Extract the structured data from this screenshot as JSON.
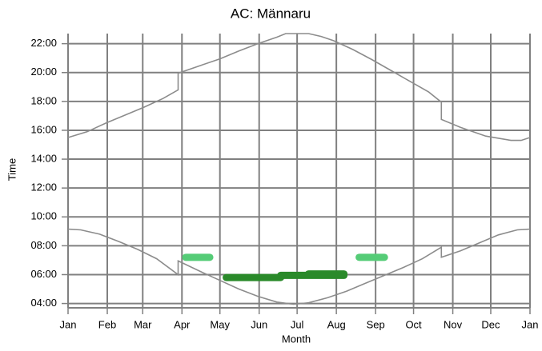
{
  "chart_data": {
    "type": "line",
    "title": "AC: Männaru",
    "xlabel": "Month",
    "ylabel": "Time",
    "xlim": [
      0,
      365
    ],
    "ylim": [
      3.7,
      22.7
    ],
    "xticks": [
      {
        "value": 0,
        "label": "Jan"
      },
      {
        "value": 31,
        "label": "Feb"
      },
      {
        "value": 59,
        "label": "Mar"
      },
      {
        "value": 90,
        "label": "Apr"
      },
      {
        "value": 120,
        "label": "May"
      },
      {
        "value": 151,
        "label": "Jun"
      },
      {
        "value": 181,
        "label": "Jul"
      },
      {
        "value": 212,
        "label": "Aug"
      },
      {
        "value": 243,
        "label": "Sep"
      },
      {
        "value": 273,
        "label": "Oct"
      },
      {
        "value": 304,
        "label": "Nov"
      },
      {
        "value": 334,
        "label": "Dec"
      },
      {
        "value": 365,
        "label": "Jan"
      }
    ],
    "yticks": [
      {
        "value": 4,
        "label": "04:00"
      },
      {
        "value": 6,
        "label": "06:00"
      },
      {
        "value": 8,
        "label": "08:00"
      },
      {
        "value": 10,
        "label": "10:00"
      },
      {
        "value": 12,
        "label": "12:00"
      },
      {
        "value": 14,
        "label": "14:00"
      },
      {
        "value": 16,
        "label": "16:00"
      },
      {
        "value": 18,
        "label": "18:00"
      },
      {
        "value": 20,
        "label": "20:00"
      },
      {
        "value": 22,
        "label": "22:00"
      }
    ],
    "grid": true,
    "series": [
      {
        "color": "#8c8c8c",
        "x": [
          0,
          15,
          30,
          45,
          60,
          75,
          87,
          87,
          105,
          120,
          135,
          150,
          165,
          172,
          190,
          200,
          210,
          225,
          240,
          255,
          270,
          285,
          295,
          295,
          310,
          330,
          350,
          358,
          365
        ],
        "values": [
          15.5,
          15.9,
          16.5,
          17.05,
          17.6,
          18.2,
          18.8,
          19.95,
          20.5,
          20.95,
          21.5,
          22.0,
          22.45,
          22.7,
          22.7,
          22.5,
          22.2,
          21.6,
          20.9,
          20.15,
          19.4,
          18.65,
          17.95,
          16.75,
          16.2,
          15.6,
          15.3,
          15.3,
          15.5
        ]
      },
      {
        "color": "#8c8c8c",
        "x": [
          0,
          10,
          25,
          40,
          55,
          70,
          87,
          87,
          105,
          120,
          135,
          150,
          165,
          178,
          190,
          205,
          220,
          235,
          250,
          265,
          280,
          295,
          295,
          310,
          325,
          340,
          355,
          365
        ],
        "values": [
          9.15,
          9.1,
          8.8,
          8.3,
          7.75,
          7.1,
          6.0,
          6.95,
          6.2,
          5.6,
          5.0,
          4.5,
          4.1,
          3.95,
          4.05,
          4.4,
          4.85,
          5.4,
          5.95,
          6.5,
          7.1,
          7.9,
          7.2,
          7.65,
          8.2,
          8.75,
          9.1,
          9.15
        ]
      }
    ],
    "segments": [
      {
        "color": "#55cc77",
        "x": [
          93,
          112
        ],
        "value": 7.2
      },
      {
        "color": "#55cc77",
        "x": [
          230,
          250
        ],
        "value": 7.2
      },
      {
        "color": "#2a8a2a",
        "x": [
          125,
          168
        ],
        "value": 5.8
      },
      {
        "color": "#2a8a2a",
        "x": [
          168,
          218
        ],
        "value": 5.95
      },
      {
        "color": "#2a8a2a",
        "x": [
          190,
          218
        ],
        "value": 6.05
      }
    ]
  }
}
